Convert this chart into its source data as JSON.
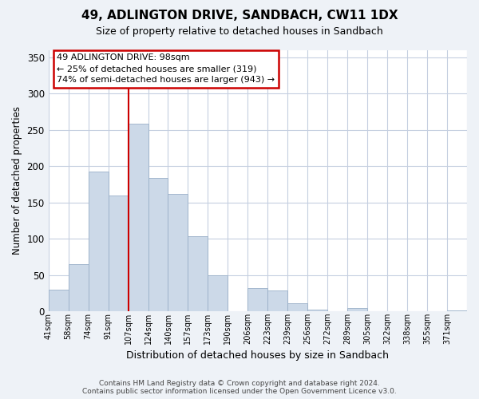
{
  "title": "49, ADLINGTON DRIVE, SANDBACH, CW11 1DX",
  "subtitle": "Size of property relative to detached houses in Sandbach",
  "xlabel": "Distribution of detached houses by size in Sandbach",
  "ylabel": "Number of detached properties",
  "bar_labels": [
    "41sqm",
    "58sqm",
    "74sqm",
    "91sqm",
    "107sqm",
    "124sqm",
    "140sqm",
    "157sqm",
    "173sqm",
    "190sqm",
    "206sqm",
    "223sqm",
    "239sqm",
    "256sqm",
    "272sqm",
    "289sqm",
    "305sqm",
    "322sqm",
    "338sqm",
    "355sqm",
    "371sqm"
  ],
  "bar_values": [
    30,
    65,
    193,
    160,
    258,
    184,
    162,
    103,
    50,
    0,
    32,
    29,
    11,
    3,
    0,
    5,
    0,
    0,
    0,
    0,
    1
  ],
  "bar_color": "#ccd9e8",
  "bar_edge_color": "#9ab0c8",
  "vline_x_idx": 4,
  "vline_color": "#cc0000",
  "annotation_text": "49 ADLINGTON DRIVE: 98sqm\n← 25% of detached houses are smaller (319)\n74% of semi-detached houses are larger (943) →",
  "annotation_box_facecolor": "#ffffff",
  "annotation_box_edgecolor": "#cc0000",
  "ylim": [
    0,
    360
  ],
  "yticks": [
    0,
    50,
    100,
    150,
    200,
    250,
    300,
    350
  ],
  "footer_line1": "Contains HM Land Registry data © Crown copyright and database right 2024.",
  "footer_line2": "Contains public sector information licensed under the Open Government Licence v3.0.",
  "bg_color": "#eef2f7",
  "plot_bg_color": "#ffffff",
  "grid_color": "#c5cfe0"
}
